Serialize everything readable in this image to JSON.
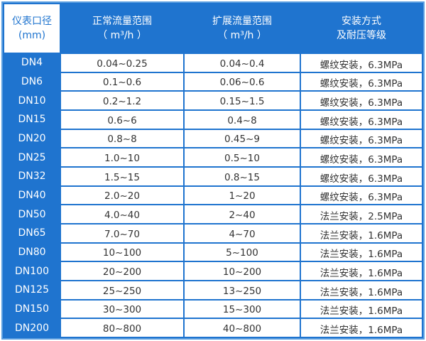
{
  "headers": {
    "diameter": [
      "仪表口径",
      "(mm)"
    ],
    "normal_flow": [
      "正常流量范围",
      "（ m³/h ）"
    ],
    "extended_flow": [
      "扩展流量范围",
      "（ m³/h ）"
    ],
    "install": [
      "安装方式",
      "及耐压等级"
    ]
  },
  "rows": [
    [
      "DN4",
      "0.04~0.25",
      "0.04~0.4",
      "螺纹安装，6.3MPa"
    ],
    [
      "DN6",
      "0.1~0.6",
      "0.06~0.6",
      "螺纹安装，6.3MPa"
    ],
    [
      "DN10",
      "0.2~1.2",
      "0.15~1.5",
      "螺纹安装，6.3MPa"
    ],
    [
      "DN15",
      "0.6~6",
      "0.4~8",
      "螺纹安装，6.3MPa"
    ],
    [
      "DN20",
      "0.8~8",
      "0.45~9",
      "螺纹安装，6.3MPa"
    ],
    [
      "DN25",
      "1.0~10",
      "0.5~10",
      "螺纹安装，6.3MPa"
    ],
    [
      "DN32",
      "1.5~15",
      "0.8~15",
      "螺纹安装，6.3MPa"
    ],
    [
      "DN40",
      "2.0~20",
      "1~20",
      "螺纹安装，6.3MPa"
    ],
    [
      "DN50",
      "4.0~40",
      "2~40",
      "法兰安装，2.5MPa"
    ],
    [
      "DN65",
      "7.0~70",
      "4~70",
      "法兰安装，1.6MPa"
    ],
    [
      "DN80",
      "10~100",
      "5~100",
      "法兰安装，1.6MPa"
    ],
    [
      "DN100",
      "20~200",
      "10~200",
      "法兰安装，1.6MPa"
    ],
    [
      "DN125",
      "25~250",
      "13~250",
      "法兰安装，1.6MPa"
    ],
    [
      "DN150",
      "30~300",
      "15~300",
      "法兰安装，1.6MPa"
    ],
    [
      "DN200",
      "80~800",
      "40~800",
      "法兰安装，1.6MPa"
    ]
  ],
  "colors": {
    "accent": "#1f74cf",
    "text": "#333333"
  }
}
